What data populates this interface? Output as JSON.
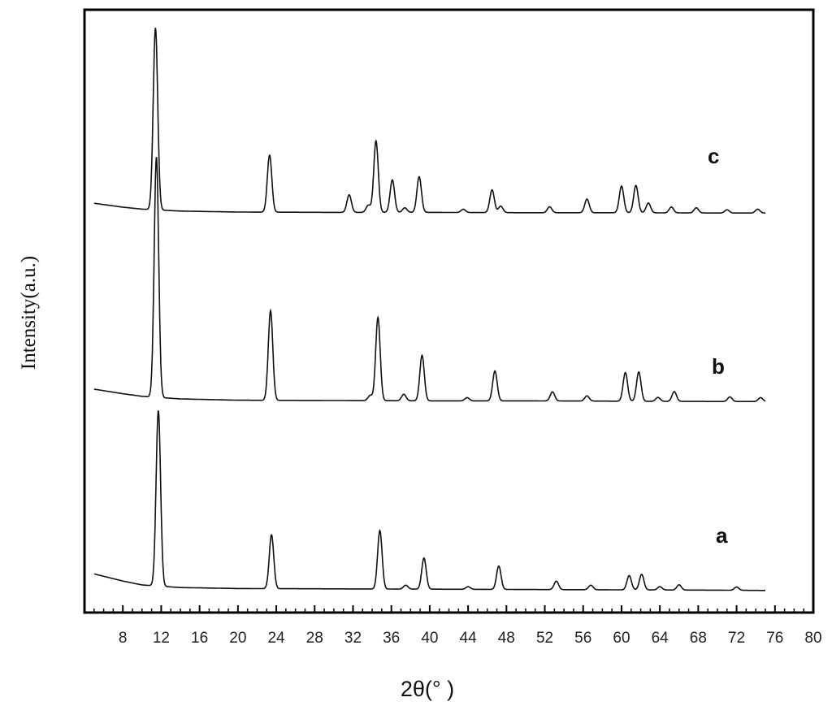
{
  "chart_data": {
    "type": "line",
    "xlabel": "2θ(°  )",
    "ylabel": "Intensity(a.u.)",
    "xlim": [
      4,
      80
    ],
    "x_ticks": [
      8,
      12,
      16,
      20,
      24,
      28,
      32,
      36,
      40,
      44,
      48,
      52,
      56,
      60,
      64,
      68,
      72,
      76,
      80
    ],
    "y_ticks_shown": false,
    "legend": "none",
    "grid": false,
    "series": [
      {
        "name": "a",
        "baseline": [
          [
            5,
            2.7
          ],
          [
            8,
            1.6
          ],
          [
            10,
            1.0
          ],
          [
            14,
            0.6
          ],
          [
            20,
            0.45
          ],
          [
            30,
            0.4
          ],
          [
            40,
            0.35
          ],
          [
            50,
            0.3
          ],
          [
            60,
            0.25
          ],
          [
            70,
            0.2
          ],
          [
            75,
            0.15
          ]
        ],
        "peaks": [
          [
            11.7,
            27.0
          ],
          [
            23.5,
            8.3
          ],
          [
            34.8,
            9.0
          ],
          [
            37.5,
            0.6
          ],
          [
            39.4,
            4.8
          ],
          [
            44.0,
            0.4
          ],
          [
            47.2,
            3.6
          ],
          [
            53.2,
            1.3
          ],
          [
            56.8,
            0.7
          ],
          [
            60.8,
            2.2
          ],
          [
            62.1,
            2.4
          ],
          [
            64.0,
            0.5
          ],
          [
            66.0,
            0.8
          ],
          [
            72.0,
            0.5
          ]
        ]
      },
      {
        "name": "b",
        "baseline": [
          [
            5,
            2.0
          ],
          [
            8,
            1.3
          ],
          [
            10,
            0.9
          ],
          [
            14,
            0.5
          ],
          [
            20,
            0.3
          ],
          [
            30,
            0.25
          ],
          [
            40,
            0.2
          ],
          [
            50,
            0.2
          ],
          [
            60,
            0.15
          ],
          [
            70,
            0.1
          ],
          [
            75,
            0.1
          ]
        ],
        "peaks": [
          [
            11.5,
            37.0
          ],
          [
            23.4,
            13.8
          ],
          [
            34.6,
            12.8
          ],
          [
            33.8,
            0.8
          ],
          [
            37.3,
            1.0
          ],
          [
            39.2,
            7.0
          ],
          [
            43.9,
            0.5
          ],
          [
            46.8,
            4.6
          ],
          [
            52.8,
            1.4
          ],
          [
            56.4,
            0.8
          ],
          [
            60.4,
            4.4
          ],
          [
            61.8,
            4.5
          ],
          [
            63.8,
            0.6
          ],
          [
            65.5,
            1.5
          ],
          [
            71.3,
            0.7
          ],
          [
            74.5,
            0.6
          ]
        ]
      },
      {
        "name": "c",
        "baseline": [
          [
            5,
            1.6
          ],
          [
            8,
            1.0
          ],
          [
            10,
            0.7
          ],
          [
            14,
            0.4
          ],
          [
            20,
            0.25
          ],
          [
            30,
            0.2
          ],
          [
            40,
            0.2
          ],
          [
            50,
            0.15
          ],
          [
            60,
            0.15
          ],
          [
            70,
            0.1
          ],
          [
            75,
            0.1
          ]
        ],
        "peaks": [
          [
            11.4,
            28.0
          ],
          [
            23.3,
            8.8
          ],
          [
            31.6,
            2.7
          ],
          [
            34.4,
            11.0
          ],
          [
            33.6,
            1.1
          ],
          [
            36.1,
            5.0
          ],
          [
            37.4,
            0.7
          ],
          [
            38.9,
            5.5
          ],
          [
            43.5,
            0.5
          ],
          [
            46.5,
            3.5
          ],
          [
            47.4,
            1.0
          ],
          [
            52.5,
            0.9
          ],
          [
            56.4,
            2.1
          ],
          [
            60.0,
            4.1
          ],
          [
            61.5,
            4.2
          ],
          [
            62.8,
            1.5
          ],
          [
            65.2,
            0.9
          ],
          [
            67.8,
            0.8
          ],
          [
            71.0,
            0.5
          ],
          [
            74.2,
            0.6
          ]
        ]
      }
    ]
  }
}
